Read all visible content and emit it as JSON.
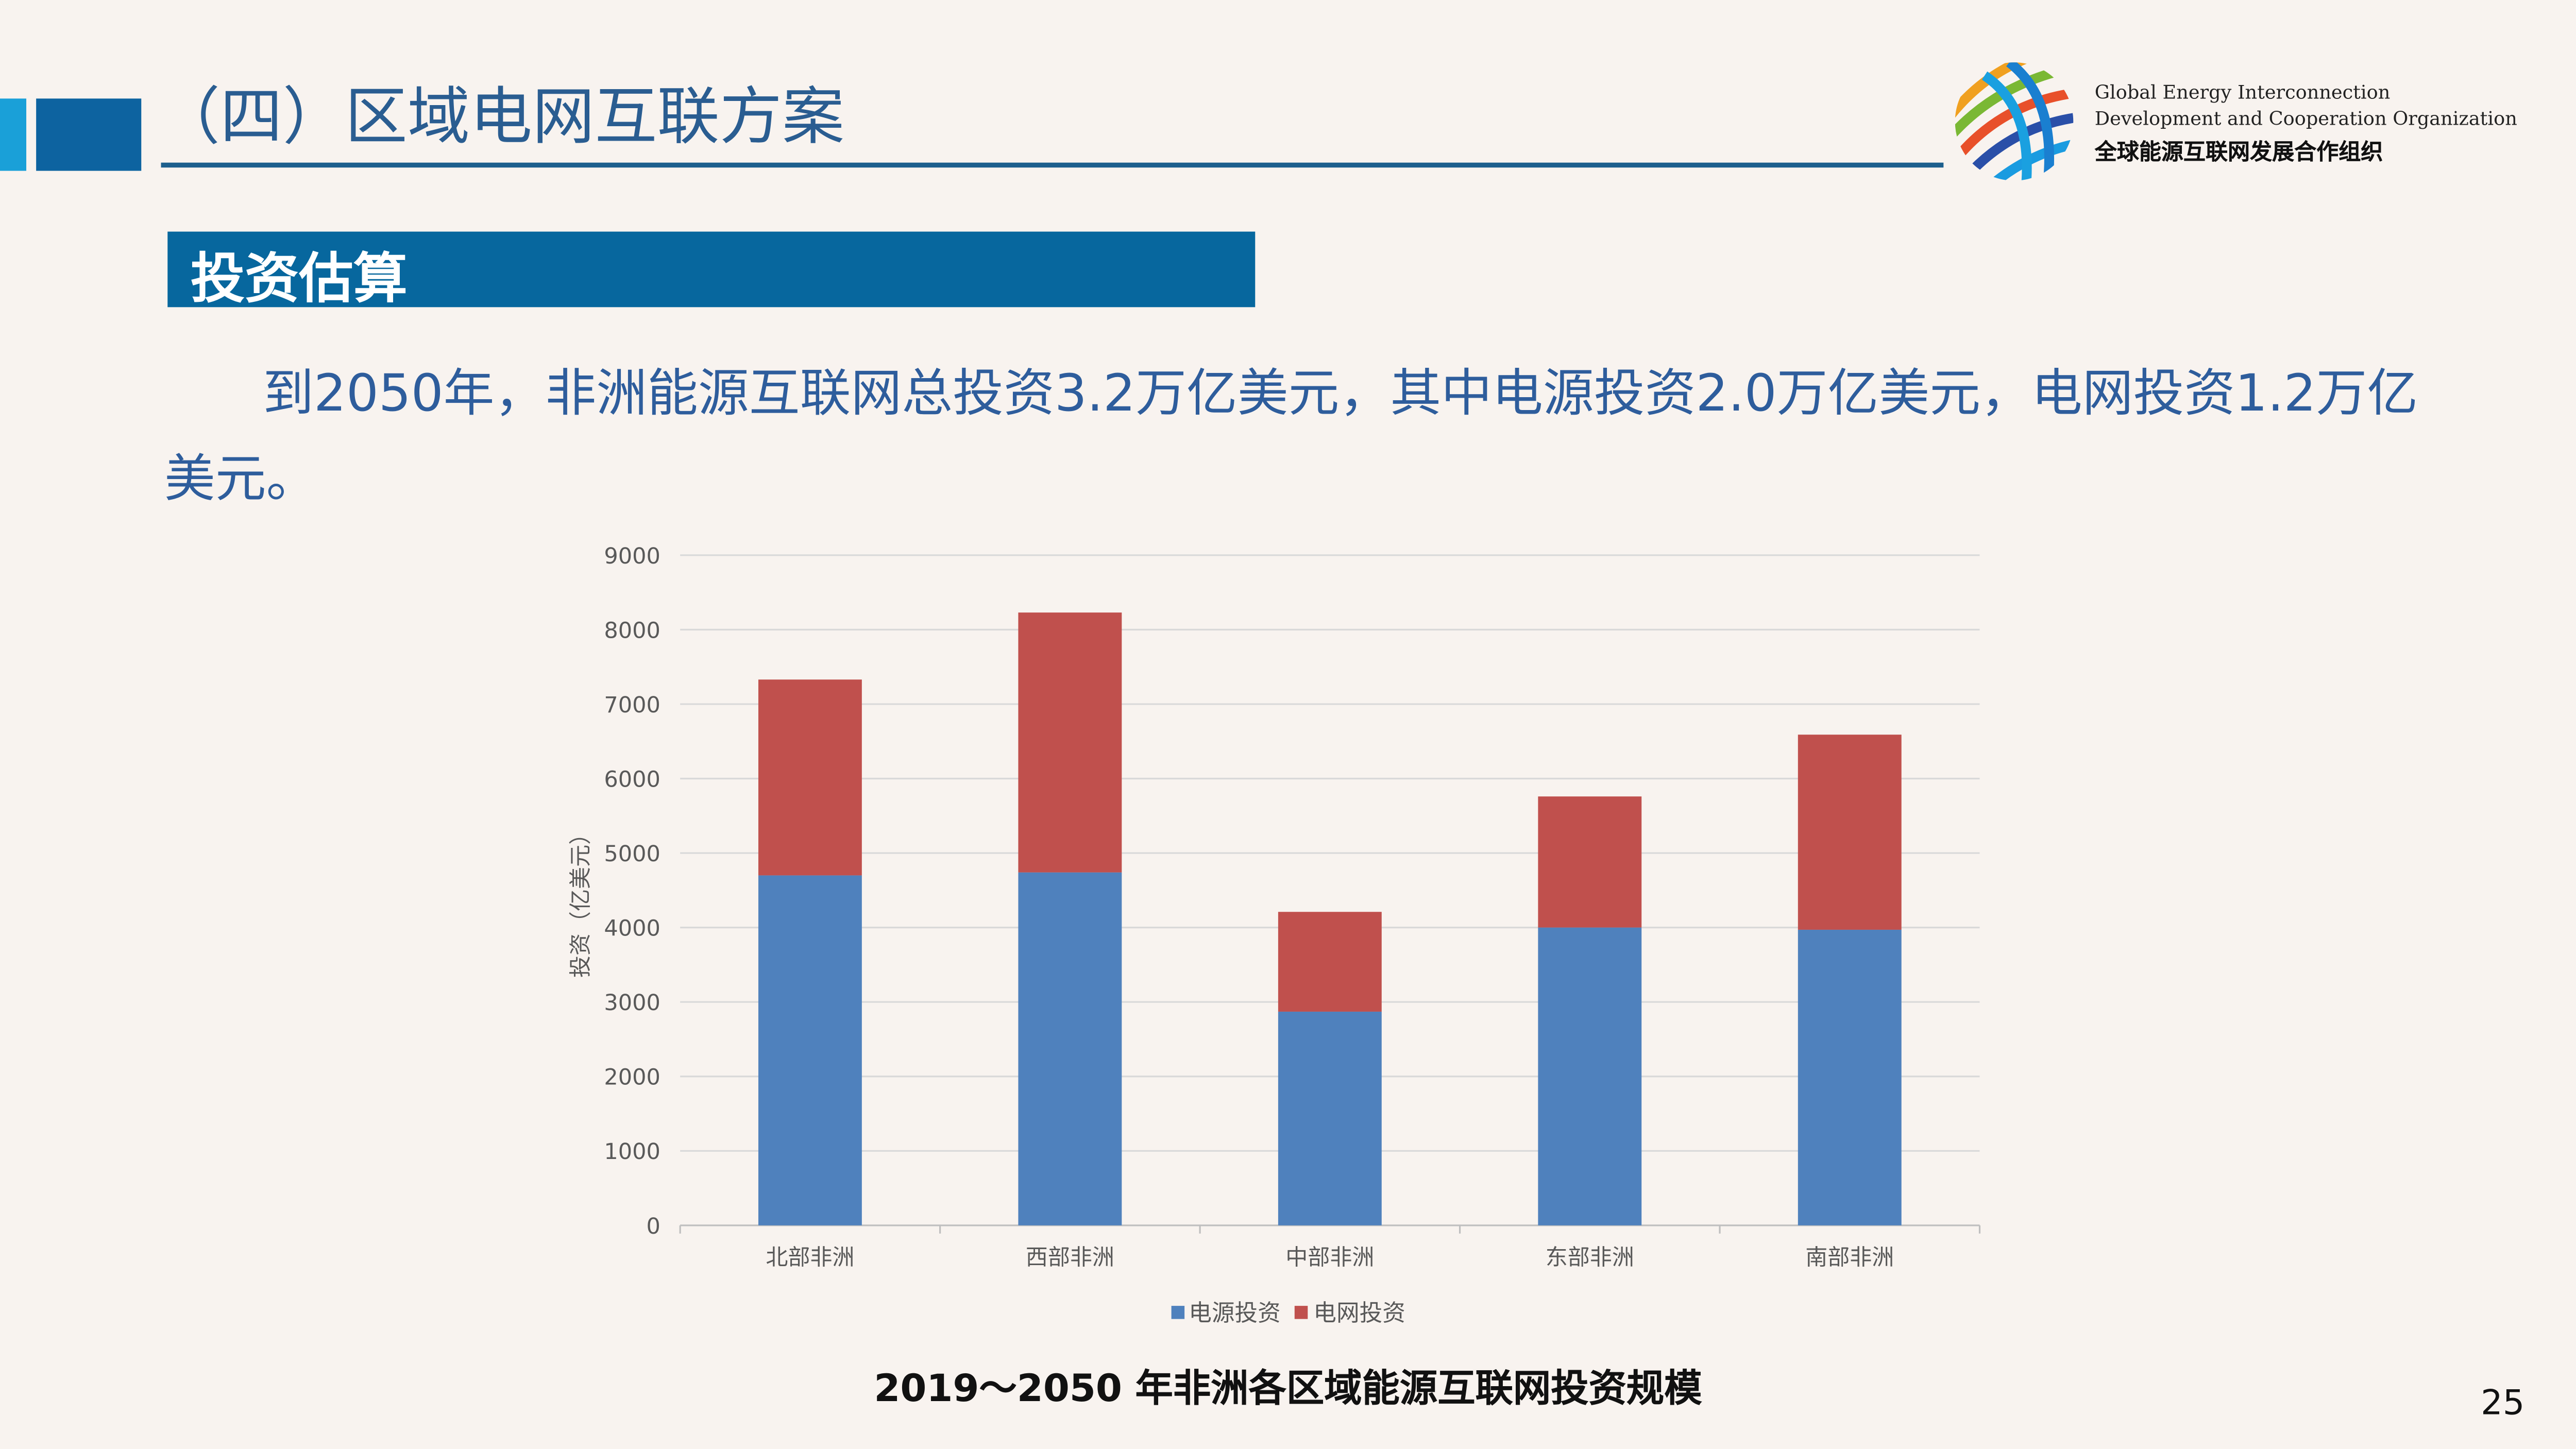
{
  "header": {
    "title": "（四）区域电网互联方案"
  },
  "org": {
    "name_en_line1": "Global Energy Interconnection",
    "name_en_line2": "Development and Cooperation Organization",
    "name_cn": "全球能源互联网发展合作组织"
  },
  "section": {
    "title": "投资估算"
  },
  "body": {
    "paragraph": "到2050年，非洲能源互联网总投资3.2万亿美元，其中电源投资2.0万亿美元，电网投资1.2万亿美元。"
  },
  "chart_data": {
    "type": "bar",
    "stacked": true,
    "title": "2019～2050 年非洲各区域能源互联网投资规模",
    "xlabel": "",
    "ylabel": "投资（亿美元）",
    "ylim": [
      0,
      9000
    ],
    "yticks": [
      "0",
      "1000",
      "2000",
      "3000",
      "4000",
      "5000",
      "6000",
      "7000",
      "8000",
      "9000"
    ],
    "grid": true,
    "legend_position": "bottom",
    "categories": [
      "北部非洲",
      "西部非洲",
      "中部非洲",
      "东部非洲",
      "南部非洲"
    ],
    "series": [
      {
        "name": "电源投资",
        "color": "#4f81bd",
        "values": [
          4700,
          4740,
          2870,
          4000,
          3970
        ]
      },
      {
        "name": "电网投资",
        "color": "#c0504d",
        "values": [
          2630,
          3490,
          1340,
          1760,
          2620
        ]
      }
    ]
  },
  "page": {
    "number": "25"
  }
}
